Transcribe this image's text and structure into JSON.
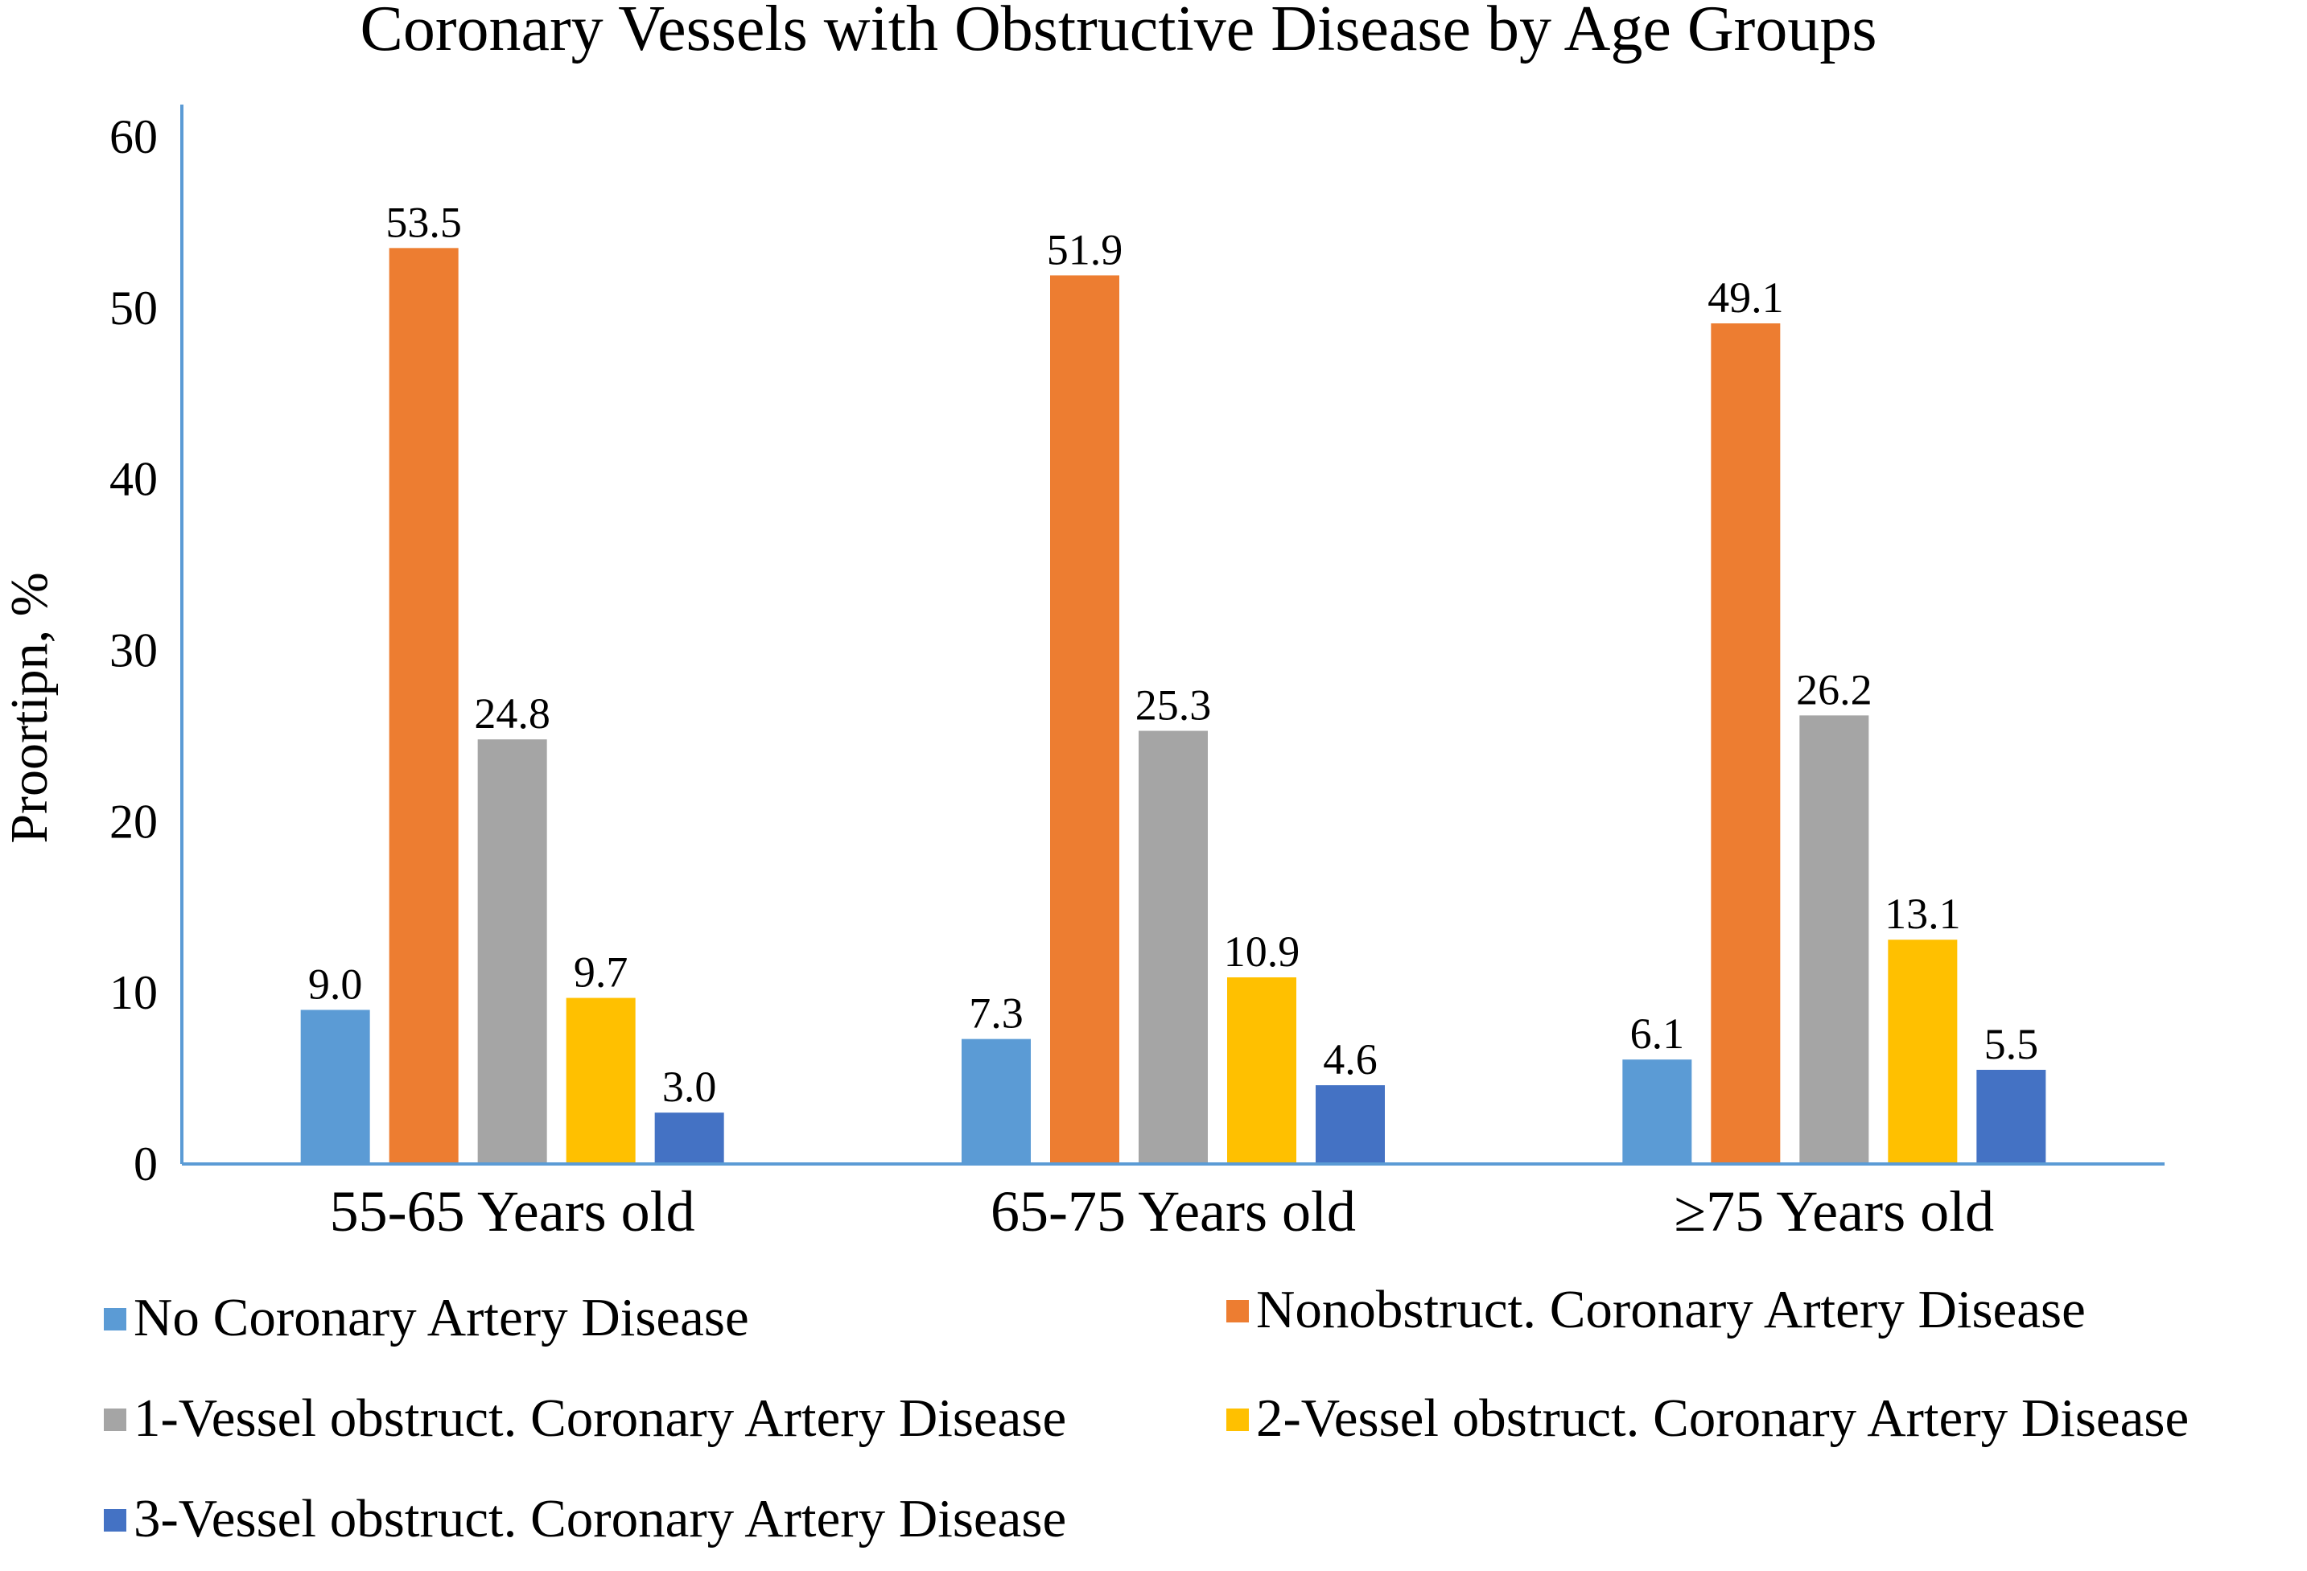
{
  "chart_data": {
    "type": "bar",
    "title": "Coronary Vessels with Obstructive Disease by Age Groups",
    "xlabel": "",
    "ylabel": "Proortipn, %",
    "ylim": [
      0,
      60
    ],
    "yticks": [
      0,
      10,
      20,
      30,
      40,
      50,
      60
    ],
    "grid": false,
    "legend_position": "bottom",
    "categories": [
      "55-65 Years old",
      "65-75 Years old",
      "≥75 Years old"
    ],
    "series": [
      {
        "name": "No Coronary Artery Disease",
        "color": "#5B9BD5",
        "values": [
          9.0,
          7.3,
          6.1
        ]
      },
      {
        "name": "Nonobstruct. Coronary Artery Disease",
        "color": "#ED7D31",
        "values": [
          53.5,
          51.9,
          49.1
        ]
      },
      {
        "name": "1-Vessel obstruct. Coronary Artery Disease",
        "color": "#A5A5A5",
        "values": [
          24.8,
          25.3,
          26.2
        ]
      },
      {
        "name": "2-Vessel obstruct. Coronary Artery Disease",
        "color": "#FFC000",
        "values": [
          9.7,
          10.9,
          13.1
        ]
      },
      {
        "name": "3-Vessel obstruct. Coronary Artery Disease",
        "color": "#4472C4",
        "values": [
          3.0,
          4.6,
          5.5
        ]
      }
    ],
    "data_labels": [
      [
        "9.0",
        "7.3",
        "6.1"
      ],
      [
        "53.5",
        "51.9",
        "49.1"
      ],
      [
        "24.8",
        "25.3",
        "26.2"
      ],
      [
        "9.7",
        "10.9",
        "13.1"
      ],
      [
        "3.0",
        "4.6",
        "5.5"
      ]
    ],
    "axis_color": "#5B9BD5"
  }
}
